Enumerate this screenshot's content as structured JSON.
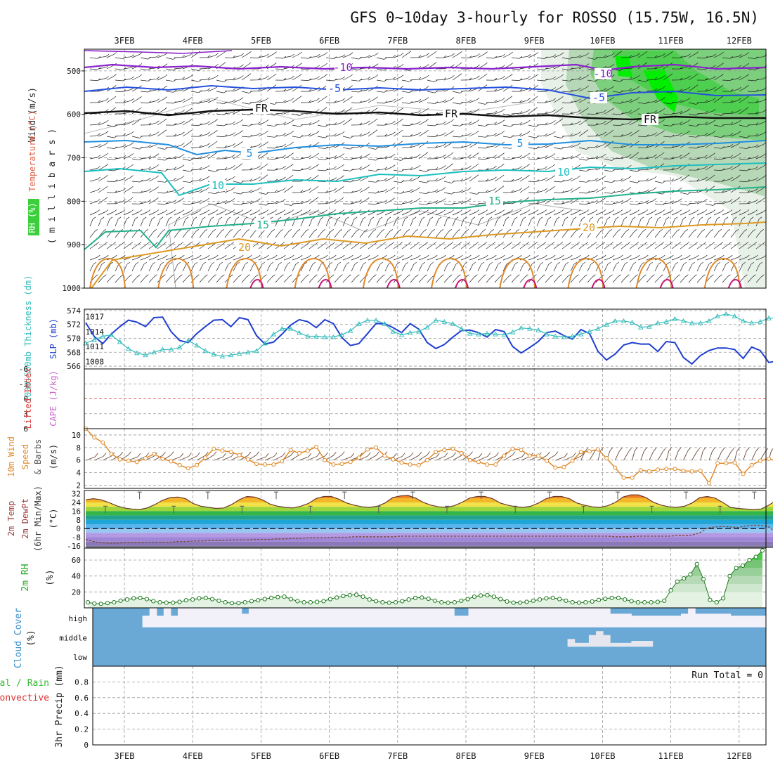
{
  "title": "GFS 0~10day 3-hourly for ROSSO (15.75W, 16.5N)",
  "dates": [
    "3FEB",
    "4FEB",
    "5FEB",
    "6FEB",
    "7FEB",
    "8FEB",
    "9FEB",
    "10FEB",
    "11FEB",
    "12FEB"
  ],
  "run_total": "Run Total = 0",
  "colors": {
    "rh_green": "#3ccf3c",
    "temp_orange": "#d9822b",
    "wind_black": "#000000",
    "slp_blue": "#1f3fd0",
    "thickness_cyan": "#33bbbb",
    "cape_red": "#dd3333",
    "wind10_orange": "#e08a2a",
    "cloud_blue": "#6aa9d6",
    "cloud_clear": "#f2f0f8",
    "rh2m_green": "#22aa22"
  },
  "panels": {
    "upper": {
      "labels": {
        "wind": "Wind (m/s)",
        "temp": "Temperature (°C)",
        "rh": "RH (%)",
        "yaxis": "( m i l l i b a r s )"
      },
      "ticks": [
        "500",
        "600",
        "700",
        "800",
        "900",
        "1000"
      ],
      "contour_labels": {
        "minus10": "-10",
        "minus5": "-5",
        "fr": "FR",
        "c5": "5",
        "c10": "10",
        "c15": "15",
        "c20": "20"
      }
    },
    "slp": {
      "labels": {
        "thickness": "1000-500mb Thickness (dm)",
        "slp": "SLP (mb)"
      },
      "left_ticks": [
        "574",
        "572",
        "570",
        "568",
        "566"
      ],
      "right_ticks": [
        "1017",
        "1014",
        "1011",
        "1008"
      ]
    },
    "cape": {
      "labels": {
        "li": "Lifted Index",
        "cape": "CAPE (J/kg)"
      },
      "ticks": [
        "-6",
        "-3",
        "0",
        "3",
        "6"
      ]
    },
    "wind10": {
      "labels": {
        "l1": "10m Wind",
        "l2": "Speed",
        "l3": "& Barbs",
        "l4": "(m/s)"
      },
      "ticks": [
        "10",
        "8",
        "6",
        "4",
        "2"
      ]
    },
    "temp2m": {
      "labels": {
        "l1": "2m Temp",
        "l2": "2m DewPt",
        "l3": "(6hr Min/Max)",
        "l4": "(°C)"
      },
      "ticks": [
        "32",
        "24",
        "16",
        "8",
        "0",
        "-8",
        "-16"
      ]
    },
    "rh2m": {
      "labels": {
        "l1": "2m RH",
        "l2": "(%)"
      },
      "ticks": [
        "60",
        "40",
        "20"
      ]
    },
    "cloud": {
      "labels": {
        "l1": "Cloud Cover",
        "l2": "(%)"
      },
      "ticks": [
        "high",
        "middle",
        "low"
      ]
    },
    "precip": {
      "labels": {
        "l1": "Total / Rain",
        "l2": "Convective",
        "l3": "3hr Precip (mm)"
      },
      "ticks": [
        "0.8",
        "0.6",
        "0.4",
        "0.2",
        "0"
      ]
    }
  },
  "chart_data": [
    {
      "type": "line",
      "title": "",
      "name": "upper-air cross section",
      "x": [
        "3FEB",
        "4FEB",
        "5FEB",
        "6FEB",
        "7FEB",
        "8FEB",
        "9FEB",
        "10FEB",
        "11FEB",
        "12FEB"
      ],
      "ylabel": "millibars",
      "ylim": [
        450,
        1000
      ],
      "y_inverted": true,
      "contours_temp_c": [
        -10,
        -5,
        0,
        5,
        10,
        15,
        20
      ],
      "rh_shading": "green, high RH aloft after 9FEB",
      "grid": true
    },
    {
      "type": "line",
      "title": "",
      "x_start_label": "3FEB",
      "step_hours": 3,
      "series": [
        {
          "name": "SLP (mb)",
          "axis": "right",
          "ylim": [
            1006.5,
            1018.5
          ],
          "values": [
            1015.8,
            1013,
            1011.6,
            1013.5,
            1015,
            1016.3,
            1015.9,
            1015,
            1016.8,
            1016.9,
            1014,
            1012.2,
            1011.8,
            1013.6,
            1015,
            1016.3,
            1016.4,
            1015,
            1016.8,
            1016.4,
            1013.2,
            1011.5,
            1011.9,
            1013.5,
            1015.3,
            1016.4,
            1016,
            1014.8,
            1016.4,
            1015.6,
            1012.8,
            1011.2,
            1011.6,
            1013.6,
            1015.6,
            1015.6,
            1014.8,
            1013.8,
            1015.6,
            1014.5,
            1011.8,
            1010.6,
            1011.4,
            1012.9,
            1014.2,
            1014.3,
            1013.8,
            1012.9,
            1014.4,
            1014,
            1011,
            1009.7,
            1010.8,
            1012,
            1013.8,
            1014.1,
            1013.2,
            1012.5,
            1014.4,
            1013.6,
            1010,
            1008.3,
            1009.5,
            1011.3,
            1011.8,
            1011.5,
            1011.5,
            1010,
            1012,
            1011.8,
            1008.8,
            1007.5,
            1009.2,
            1010.2,
            1010.7,
            1010.7,
            1010.4,
            1008.6,
            1010.9,
            1010.2,
            1007.8,
            1008.1,
            1010.6,
            1010.6
          ]
        },
        {
          "name": "1000-500mb Thickness (dm)",
          "axis": "left",
          "ylim": [
            565.6,
            574.2
          ],
          "values": [
            569.3,
            569.8,
            570.3,
            570.5,
            569.5,
            568.5,
            567.9,
            567.6,
            568,
            568.4,
            568.4,
            568.7,
            569.7,
            569,
            568.2,
            567.7,
            567.4,
            567.6,
            567.8,
            568,
            568.2,
            569.3,
            570.6,
            571.4,
            571.4,
            570.8,
            570.3,
            570.3,
            570.2,
            570.2,
            570.5,
            571.1,
            572.1,
            572.6,
            572.6,
            572.1,
            571,
            570.5,
            570.8,
            571,
            571.6,
            572.6,
            572.4,
            572.1,
            571.4,
            570.7,
            570.6,
            570.7,
            570.6,
            570.5,
            570.9,
            571.5,
            571.4,
            571.2,
            570.6,
            570.3,
            570.2,
            570.3,
            570.6,
            571,
            571.4,
            572,
            572.5,
            572.5,
            572.3,
            571.6,
            571.7,
            572.2,
            572.4,
            572.8,
            572.5,
            572.2,
            572.2,
            572.5,
            573.2,
            573.5,
            573.2,
            572.5,
            572.2,
            572.4,
            572.9,
            572.9,
            572.6,
            572.2
          ]
        }
      ],
      "grid": true
    },
    {
      "type": "line",
      "title": "",
      "name": "Lifted Index / CAPE",
      "ylim": [
        6,
        -6
      ],
      "values": [],
      "zero_line": true,
      "grid": true
    },
    {
      "type": "line",
      "title": "",
      "name": "10m wind speed (m/s)",
      "ylim": [
        1.5,
        11
      ],
      "values": [
        11,
        9.6,
        8.8,
        7,
        6.1,
        5.9,
        5.7,
        6.3,
        7,
        6.2,
        5.8,
        5.2,
        4.7,
        5.2,
        6.4,
        7.8,
        7.5,
        7.3,
        6.8,
        6.1,
        5.4,
        5.3,
        5.3,
        5.8,
        7.6,
        7.1,
        7.5,
        8.1,
        6,
        5.3,
        5.4,
        5.7,
        6.4,
        7.7,
        8,
        6.7,
        6.1,
        5.6,
        5.3,
        5.2,
        6,
        7.3,
        7.6,
        7.8,
        7.1,
        6,
        5.7,
        5.3,
        5.3,
        6.7,
        7.8,
        7.6,
        6.7,
        6.7,
        5.9,
        4.8,
        4.9,
        5.9,
        7.3,
        7.4,
        7.7,
        6.3,
        4.8,
        3.2,
        3.2,
        4.4,
        4.2,
        4.5,
        4.6,
        4.6,
        4.3,
        4.2,
        4.3,
        2.3,
        5.5,
        5.5,
        5.6,
        3.8,
        5.2,
        5.9,
        6.2,
        5.8,
        5.3,
        5.1
      ],
      "grid": true
    },
    {
      "type": "area",
      "title": "",
      "name": "2m temperature and dewpoint (°C)",
      "ylim": [
        -18,
        35
      ],
      "temp_values": [
        26.5,
        27.5,
        26.5,
        24,
        21,
        19,
        18,
        17.5,
        19,
        22,
        26,
        28.5,
        29,
        27.5,
        23,
        20.5,
        19.5,
        18.5,
        19,
        22,
        26.5,
        29.5,
        29,
        26.5,
        22.5,
        20.5,
        19.5,
        19,
        20.5,
        23,
        27.5,
        29.5,
        29.5,
        27,
        23.5,
        21.5,
        20,
        19.5,
        20.5,
        23.5,
        28.5,
        30,
        30.5,
        28,
        24,
        21.5,
        20,
        19.5,
        21,
        24,
        28,
        29.5,
        29.5,
        27.5,
        23.5,
        21.5,
        20,
        19.5,
        20.5,
        23.5,
        27.5,
        29.5,
        29.5,
        27.5,
        23.5,
        21.5,
        20,
        19.5,
        21,
        24,
        29,
        31,
        31,
        28.5,
        24,
        21.5,
        20,
        19.5,
        20.5,
        23.5,
        28.5,
        29.5,
        28,
        24,
        19.5,
        18.5,
        18,
        17.5,
        18,
        21.5,
        26,
        29,
        29,
        26,
        21,
        19,
        18,
        17.5
      ],
      "dewpoint_values": [
        -10,
        -12,
        -13,
        -13.5,
        -13.5,
        -13,
        -13,
        -13,
        -12.5,
        -12.5,
        -12.5,
        -12.5,
        -12,
        -12,
        -11.5,
        -11.5,
        -11,
        -11,
        -11,
        -10.5,
        -10.5,
        -10.5,
        -10,
        -10,
        -10,
        -9.5,
        -9.5,
        -9,
        -9,
        -8.5,
        -8.5,
        -8.5,
        -8,
        -8,
        -8,
        -7.5,
        -7.5,
        -7.5,
        -7.5,
        -7.5,
        -7.5,
        -7,
        -7,
        -7,
        -7,
        -7,
        -7,
        -7,
        -7,
        -7,
        -7,
        -7,
        -7,
        -7,
        -7,
        -7,
        -7,
        -7,
        -7,
        -7,
        -7,
        -7,
        -7,
        -7,
        -7,
        -7,
        -7,
        -7,
        -7,
        -7.5,
        -7.5,
        -7.5,
        -7,
        -7,
        -7,
        -7,
        -7,
        -6.5,
        -6.5,
        -6,
        -4,
        0.5,
        1.5,
        2,
        1.5,
        1,
        2.5,
        3,
        3,
        1.5,
        -4,
        -2,
        -1,
        1,
        1.5,
        2.5,
        3.5,
        4
      ],
      "grid": true
    },
    {
      "type": "area",
      "title": "",
      "name": "2m RH (%)",
      "ylim": [
        0,
        75
      ],
      "values": [
        7,
        5.5,
        5,
        6,
        7,
        9,
        10.5,
        12,
        12.5,
        11,
        8.5,
        7,
        6.5,
        6.5,
        7.5,
        9.5,
        10.5,
        12,
        12.5,
        11,
        9,
        7,
        6,
        6,
        7,
        8.5,
        9.5,
        11,
        12.5,
        13.5,
        14,
        11,
        8.5,
        7,
        7,
        7.5,
        8.5,
        11,
        13,
        15,
        16,
        16.5,
        14,
        10.5,
        8.5,
        7,
        6.5,
        7,
        8.5,
        10.5,
        12.5,
        13,
        11.5,
        9,
        7,
        6.5,
        7,
        9,
        11,
        14,
        15.5,
        16,
        14,
        11,
        8,
        6.5,
        6.5,
        7.5,
        9,
        10.5,
        12,
        12.5,
        11,
        9,
        7,
        6.5,
        7,
        8,
        10,
        11.5,
        12.5,
        12.5,
        10.5,
        8.5,
        7,
        7,
        7,
        7.5,
        9,
        22,
        33,
        37,
        42,
        55,
        36,
        10,
        7,
        12,
        40,
        50,
        53,
        60,
        64,
        72
      ],
      "grid": true
    },
    {
      "type": "heatmap",
      "title": "",
      "name": "Cloud Cover (%)",
      "rows": [
        "high",
        "middle",
        "low"
      ],
      "high_clear_fraction_by_segment": [
        0,
        0,
        0,
        0,
        0,
        0,
        0,
        0.6,
        1,
        0.6,
        1,
        0.6,
        1,
        1,
        1,
        1,
        1,
        1,
        1,
        1,
        1,
        0.7,
        1,
        1,
        1,
        1,
        1,
        1,
        1,
        1,
        1,
        1,
        1,
        1,
        1,
        1,
        1,
        1,
        1,
        1,
        1,
        1,
        1,
        1,
        1,
        1,
        1,
        1,
        1,
        1,
        1,
        0.6,
        0.6,
        1,
        1,
        1,
        1,
        1,
        1,
        1,
        1,
        1,
        1,
        1,
        1,
        1,
        1,
        1,
        1,
        1,
        1,
        1,
        1,
        0.7,
        0.7,
        0.7,
        0.6,
        0.6,
        0.6,
        0.6,
        0.6,
        0.6,
        0.6,
        0.7,
        1,
        0.7,
        0.7,
        0.7,
        0.7,
        0.7,
        0.6,
        0.6,
        0.6,
        0.6,
        0.6
      ],
      "middle_clear_fraction_by_segment": [
        0,
        0,
        0,
        0,
        0,
        0,
        0,
        0,
        0,
        0,
        0,
        0,
        0,
        0,
        0,
        0,
        0,
        0,
        0,
        0,
        0,
        0,
        0,
        0,
        0,
        0,
        0,
        0,
        0,
        0,
        0,
        0,
        0,
        0,
        0,
        0,
        0,
        0,
        0,
        0,
        0,
        0,
        0,
        0,
        0,
        0,
        0,
        0,
        0,
        0,
        0,
        0,
        0,
        0,
        0,
        0,
        0,
        0,
        0,
        0,
        0,
        0,
        0,
        0,
        0,
        0,
        0,
        0.4,
        0.2,
        0.2,
        0.6,
        0.8,
        0.6,
        0.2,
        0.2,
        0.2,
        0.3,
        0.3,
        0.3,
        0,
        0,
        0,
        0,
        0,
        0,
        0,
        0,
        0,
        0,
        0
      ],
      "low_clear_fraction_by_segment": [],
      "grid": true
    },
    {
      "type": "bar",
      "title": "",
      "name": "3hr Precip (mm)",
      "ylim": [
        0,
        1
      ],
      "values": [],
      "grid": true
    }
  ]
}
